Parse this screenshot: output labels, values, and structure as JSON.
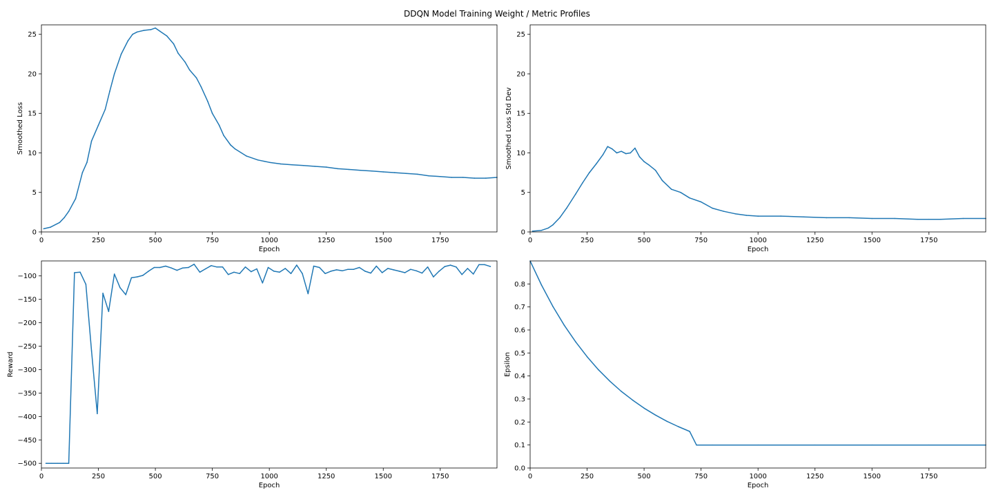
{
  "figure": {
    "title": "DDQN Model Training Weight / Metric Profiles"
  },
  "colors": {
    "series": "#1f77b4",
    "axes": "#000000",
    "background": "#ffffff"
  },
  "chart_data": [
    {
      "type": "line",
      "title": "",
      "xlabel": "Epoch",
      "ylabel": "Smoothed Loss",
      "xlim": [
        0,
        1999
      ],
      "ylim": [
        0,
        26.2
      ],
      "xticks": [
        0,
        250,
        500,
        750,
        1000,
        1250,
        1500,
        1750
      ],
      "yticks": [
        0,
        5,
        10,
        15,
        20,
        25
      ],
      "grid": false,
      "legend": "none",
      "series": [
        {
          "x": [
            10,
            40,
            80,
            100,
            120,
            150,
            180,
            200,
            220,
            250,
            280,
            300,
            320,
            350,
            380,
            400,
            420,
            450,
            480,
            500,
            520,
            550,
            580,
            600,
            630,
            650,
            680,
            700,
            730,
            750,
            780,
            800,
            830,
            850,
            900,
            950,
            1000,
            1050,
            1100,
            1150,
            1200,
            1250,
            1300,
            1350,
            1400,
            1450,
            1500,
            1550,
            1600,
            1650,
            1700,
            1750,
            1800,
            1850,
            1900,
            1950,
            1999
          ],
          "y": [
            0.4,
            0.6,
            1.2,
            1.8,
            2.6,
            4.2,
            7.5,
            8.8,
            11.5,
            13.5,
            15.5,
            17.8,
            20.0,
            22.5,
            24.2,
            25.0,
            25.3,
            25.5,
            25.6,
            25.8,
            25.4,
            24.8,
            23.8,
            22.6,
            21.5,
            20.5,
            19.5,
            18.4,
            16.5,
            15.0,
            13.5,
            12.2,
            11.0,
            10.5,
            9.6,
            9.1,
            8.8,
            8.6,
            8.5,
            8.4,
            8.3,
            8.2,
            8.0,
            7.9,
            7.8,
            7.7,
            7.6,
            7.5,
            7.4,
            7.3,
            7.1,
            7.0,
            6.9,
            6.9,
            6.8,
            6.8,
            6.9
          ]
        }
      ]
    },
    {
      "type": "line",
      "title": "",
      "xlabel": "Epoch",
      "ylabel": "Smoothed Loss Std Dev",
      "xlim": [
        0,
        1999
      ],
      "ylim": [
        0,
        26.2
      ],
      "xticks": [
        0,
        250,
        500,
        750,
        1000,
        1250,
        1500,
        1750
      ],
      "yticks": [
        0,
        5,
        10,
        15,
        20,
        25
      ],
      "grid": false,
      "legend": "none",
      "series": [
        {
          "x": [
            10,
            50,
            80,
            100,
            130,
            160,
            200,
            230,
            260,
            290,
            320,
            340,
            360,
            380,
            400,
            420,
            440,
            460,
            480,
            500,
            520,
            550,
            580,
            620,
            660,
            700,
            750,
            800,
            850,
            900,
            950,
            1000,
            1100,
            1200,
            1300,
            1400,
            1500,
            1600,
            1700,
            1750,
            1800,
            1900,
            1999
          ],
          "y": [
            0.1,
            0.2,
            0.5,
            0.9,
            1.8,
            3.0,
            4.8,
            6.2,
            7.5,
            8.6,
            9.8,
            10.8,
            10.5,
            10.0,
            10.2,
            9.9,
            10.0,
            10.6,
            9.5,
            8.9,
            8.5,
            7.8,
            6.5,
            5.4,
            5.0,
            4.3,
            3.8,
            3.0,
            2.6,
            2.3,
            2.1,
            2.0,
            2.0,
            1.9,
            1.8,
            1.8,
            1.7,
            1.7,
            1.6,
            1.6,
            1.6,
            1.7,
            1.7
          ]
        }
      ]
    },
    {
      "type": "line",
      "title": "",
      "xlabel": "Epoch",
      "ylabel": "Reward",
      "xlim": [
        0,
        1999
      ],
      "ylim": [
        -510,
        -68
      ],
      "xticks": [
        0,
        250,
        500,
        750,
        1000,
        1250,
        1500,
        1750
      ],
      "yticks": [
        -500,
        -450,
        -400,
        -350,
        -300,
        -250,
        -200,
        -150,
        -100
      ],
      "grid": false,
      "legend": "none",
      "series": [
        {
          "x": [
            20,
            45,
            70,
            95,
            120,
            145,
            170,
            195,
            220,
            245,
            270,
            295,
            320,
            345,
            370,
            395,
            420,
            445,
            470,
            495,
            520,
            545,
            570,
            595,
            620,
            645,
            670,
            695,
            720,
            745,
            770,
            795,
            820,
            845,
            870,
            895,
            920,
            945,
            970,
            995,
            1020,
            1045,
            1070,
            1095,
            1120,
            1145,
            1170,
            1195,
            1220,
            1245,
            1270,
            1295,
            1320,
            1345,
            1370,
            1395,
            1420,
            1445,
            1470,
            1495,
            1520,
            1545,
            1570,
            1595,
            1620,
            1645,
            1670,
            1695,
            1720,
            1745,
            1770,
            1795,
            1820,
            1845,
            1870,
            1895,
            1920,
            1945,
            1970
          ],
          "y": [
            -500,
            -500,
            -500,
            -500,
            -500,
            -93,
            -92,
            -118,
            -260,
            -394,
            -137,
            -176,
            -96,
            -125,
            -140,
            -104,
            -102,
            -99,
            -90,
            -82,
            -82,
            -79,
            -83,
            -88,
            -83,
            -82,
            -75,
            -92,
            -85,
            -78,
            -81,
            -81,
            -97,
            -92,
            -95,
            -81,
            -91,
            -85,
            -115,
            -82,
            -90,
            -92,
            -84,
            -95,
            -77,
            -95,
            -138,
            -79,
            -82,
            -95,
            -90,
            -87,
            -89,
            -86,
            -86,
            -82,
            -90,
            -94,
            -79,
            -93,
            -84,
            -87,
            -90,
            -93,
            -86,
            -89,
            -94,
            -81,
            -102,
            -90,
            -80,
            -77,
            -81,
            -97,
            -84,
            -96,
            -76,
            -76,
            -80
          ]
        }
      ]
    },
    {
      "type": "line",
      "title": "",
      "xlabel": "Epoch",
      "ylabel": "Epsilon",
      "xlim": [
        0,
        1999
      ],
      "ylim": [
        0,
        0.9
      ],
      "xticks": [
        0,
        250,
        500,
        750,
        1000,
        1250,
        1500,
        1750
      ],
      "yticks": [
        0.0,
        0.1,
        0.2,
        0.3,
        0.4,
        0.5,
        0.6,
        0.7,
        0.8
      ],
      "grid": false,
      "legend": "none",
      "series": [
        {
          "x": [
            0,
            50,
            100,
            150,
            200,
            250,
            300,
            350,
            400,
            450,
            500,
            550,
            600,
            650,
            700,
            730,
            800,
            1000,
            1250,
            1500,
            1750,
            1999
          ],
          "y": [
            0.9,
            0.795,
            0.702,
            0.62,
            0.548,
            0.484,
            0.427,
            0.377,
            0.333,
            0.295,
            0.26,
            0.23,
            0.203,
            0.18,
            0.159,
            0.1,
            0.1,
            0.1,
            0.1,
            0.1,
            0.1,
            0.1
          ]
        }
      ]
    }
  ]
}
